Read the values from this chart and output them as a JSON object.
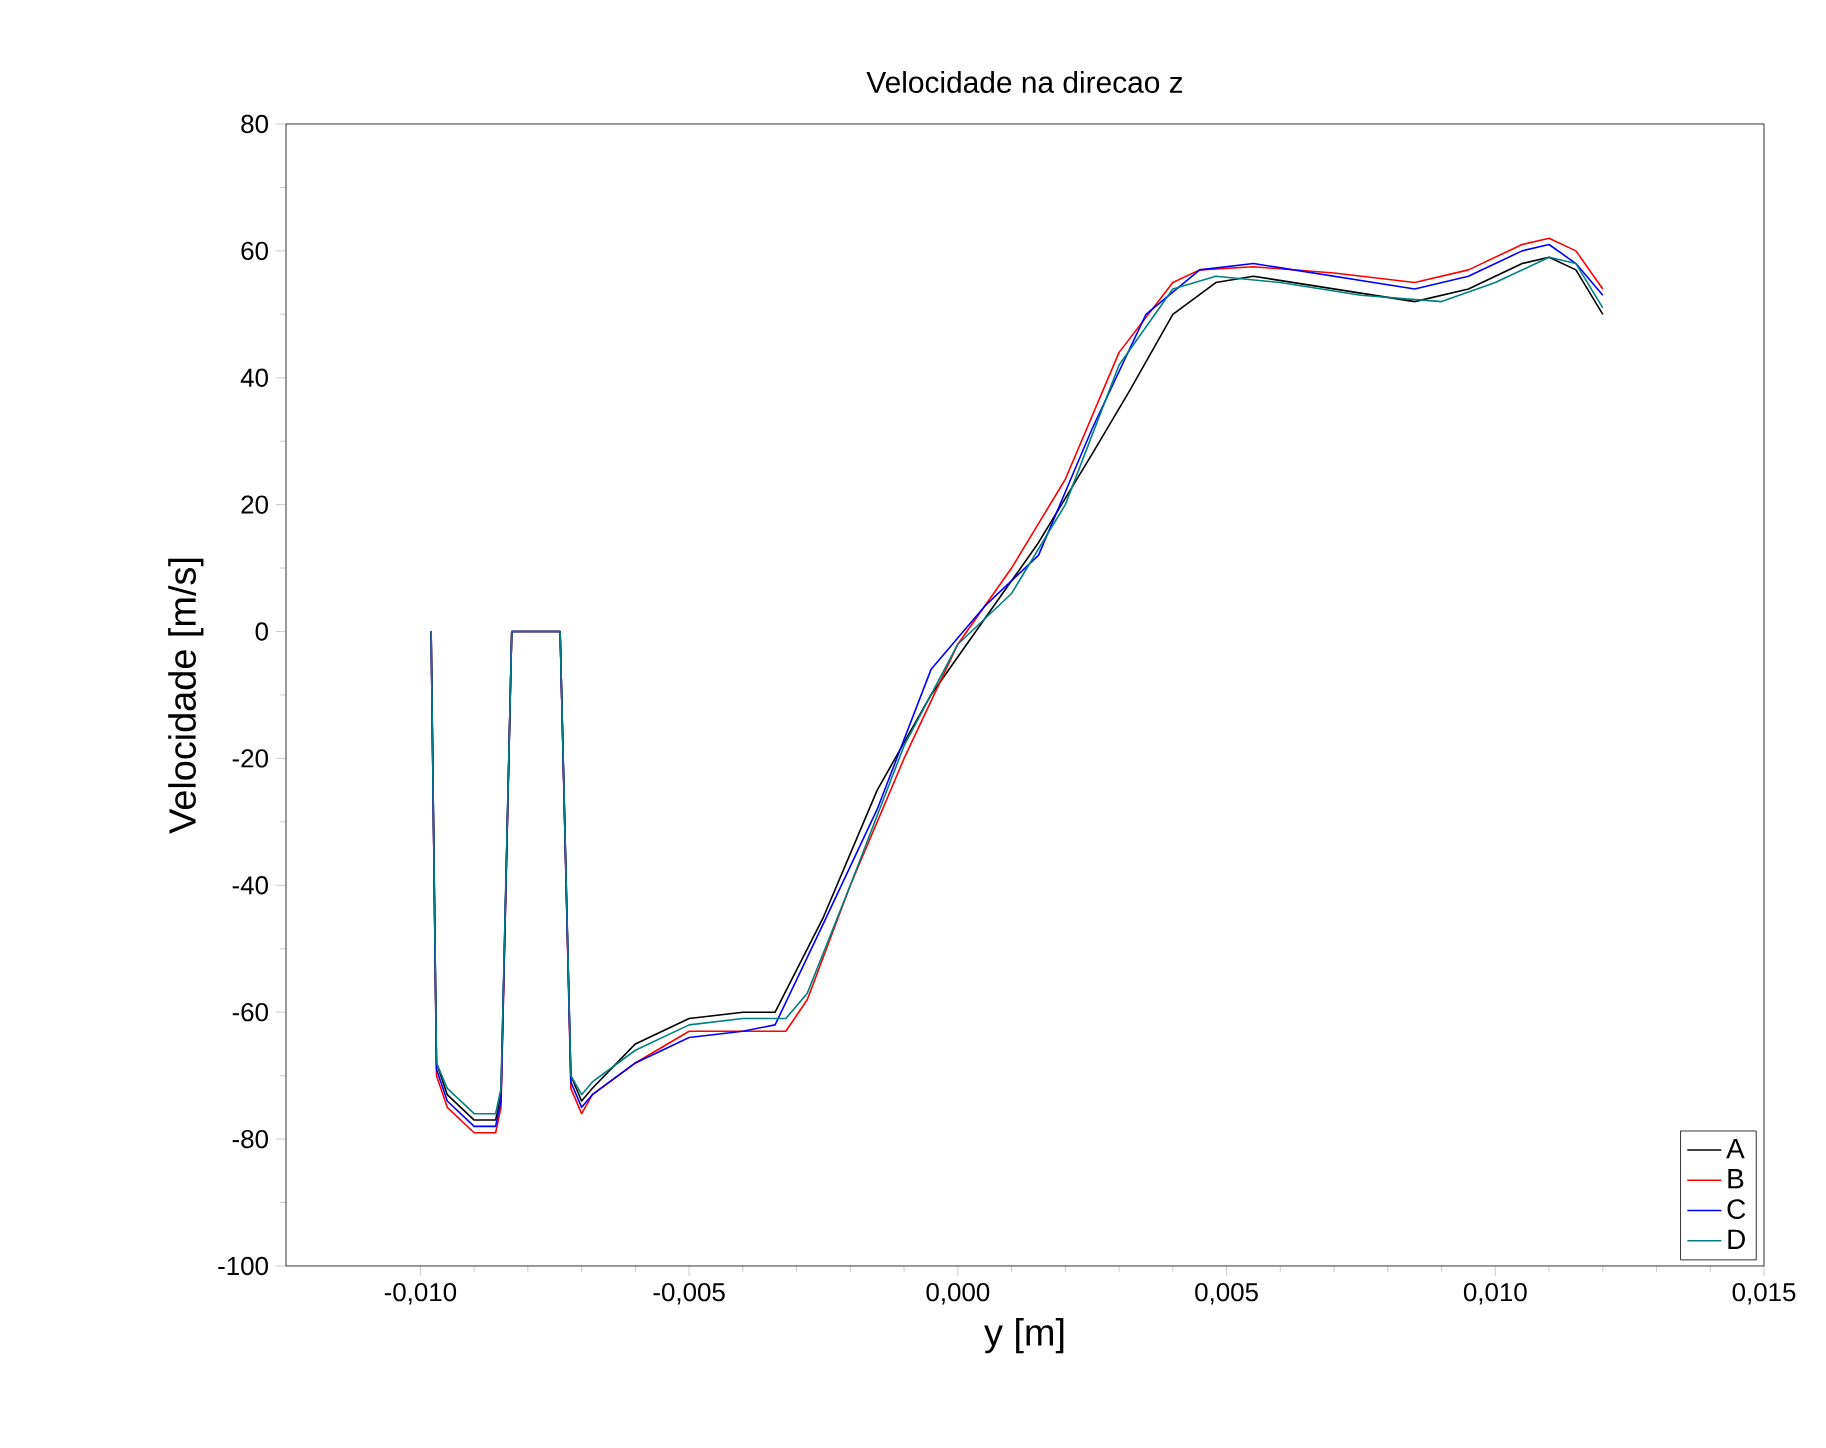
{
  "chart_data": {
    "type": "line",
    "title": "Velocidade na direcao z",
    "xlabel": "y [m]",
    "ylabel": "Velocidade [m/s]",
    "xlim": [
      -0.0125,
      0.015
    ],
    "ylim": [
      -100,
      80
    ],
    "xticks": [
      {
        "value": -0.01,
        "label": "-0,010"
      },
      {
        "value": -0.005,
        "label": "-0,005"
      },
      {
        "value": 0,
        "label": "0,000"
      },
      {
        "value": 0.005,
        "label": "0,005"
      },
      {
        "value": 0.01,
        "label": "0,010"
      },
      {
        "value": 0.015,
        "label": "0,015"
      }
    ],
    "yticks": [
      -100,
      -80,
      -60,
      -40,
      -20,
      0,
      20,
      40,
      60,
      80
    ],
    "grid": false,
    "legend": "bottom right",
    "line_style": "solid",
    "series": [
      {
        "name": "A",
        "color": "#000000",
        "x": [
          -0.0098,
          -0.0097,
          -0.0095,
          -0.009,
          -0.0086,
          -0.0085,
          -0.0083,
          -0.0074,
          -0.0072,
          -0.007,
          -0.0068,
          -0.006,
          -0.005,
          -0.004,
          -0.0034,
          -0.0025,
          -0.0015,
          -0.0005,
          0.0005,
          0.0015,
          0.0025,
          0.0032,
          0.004,
          0.0048,
          0.0055,
          0.007,
          0.0085,
          0.0095,
          0.0105,
          0.011,
          0.0115,
          0.012
        ],
        "values": [
          0,
          -68,
          -73,
          -77,
          -77,
          -73,
          0,
          0,
          -70,
          -74,
          -72,
          -65,
          -61,
          -60,
          -60,
          -45,
          -25,
          -10,
          2,
          14,
          28,
          38,
          50,
          55,
          56,
          54,
          52,
          54,
          58,
          59,
          57,
          50
        ]
      },
      {
        "name": "B",
        "color": "#ff0000",
        "x": [
          -0.0098,
          -0.0097,
          -0.0095,
          -0.009,
          -0.0086,
          -0.0085,
          -0.0083,
          -0.0074,
          -0.0072,
          -0.007,
          -0.0068,
          -0.006,
          -0.005,
          -0.004,
          -0.0032,
          -0.0028,
          -0.002,
          -0.001,
          0.0,
          0.001,
          0.002,
          0.003,
          0.004,
          0.0045,
          0.0055,
          0.007,
          0.0085,
          0.0095,
          0.0105,
          0.011,
          0.0115,
          0.012
        ],
        "values": [
          0,
          -70,
          -75,
          -79,
          -79,
          -75,
          0,
          0,
          -72,
          -76,
          -73,
          -68,
          -63,
          -63,
          -63,
          -58,
          -40,
          -20,
          -2,
          10,
          24,
          44,
          55,
          57,
          57.5,
          56.5,
          55,
          57,
          61,
          62,
          60,
          54
        ]
      },
      {
        "name": "C",
        "color": "#0000ff",
        "x": [
          -0.0098,
          -0.0097,
          -0.0095,
          -0.009,
          -0.0086,
          -0.0085,
          -0.0083,
          -0.0074,
          -0.0072,
          -0.007,
          -0.0068,
          -0.006,
          -0.005,
          -0.004,
          -0.0034,
          -0.0025,
          -0.0015,
          -0.0005,
          0.0005,
          0.0015,
          0.0025,
          0.0035,
          0.0045,
          0.0055,
          0.007,
          0.0085,
          0.0095,
          0.0105,
          0.011,
          0.0115,
          0.012
        ],
        "values": [
          0,
          -69,
          -74,
          -78,
          -78,
          -74,
          0,
          0,
          -71,
          -75,
          -73,
          -68,
          -64,
          -63,
          -62,
          -46,
          -28,
          -6,
          4,
          12,
          32,
          50,
          57,
          58,
          56,
          54,
          56,
          60,
          61,
          58,
          53
        ]
      },
      {
        "name": "D",
        "color": "#008080",
        "x": [
          -0.0098,
          -0.0097,
          -0.0095,
          -0.009,
          -0.0086,
          -0.0085,
          -0.0083,
          -0.0074,
          -0.0072,
          -0.007,
          -0.0068,
          -0.006,
          -0.005,
          -0.004,
          -0.0032,
          -0.0028,
          -0.002,
          -0.001,
          0.0,
          0.001,
          0.002,
          0.003,
          0.004,
          0.0048,
          0.006,
          0.0075,
          0.009,
          0.01,
          0.011,
          0.0115,
          0.012
        ],
        "values": [
          0,
          -68,
          -72,
          -76,
          -76,
          -72,
          0,
          0,
          -70,
          -73,
          -71,
          -66,
          -62,
          -61,
          -61,
          -57,
          -40,
          -18,
          -2,
          6,
          20,
          42,
          54,
          56,
          55,
          53,
          52,
          55,
          59,
          58,
          51
        ]
      }
    ]
  }
}
